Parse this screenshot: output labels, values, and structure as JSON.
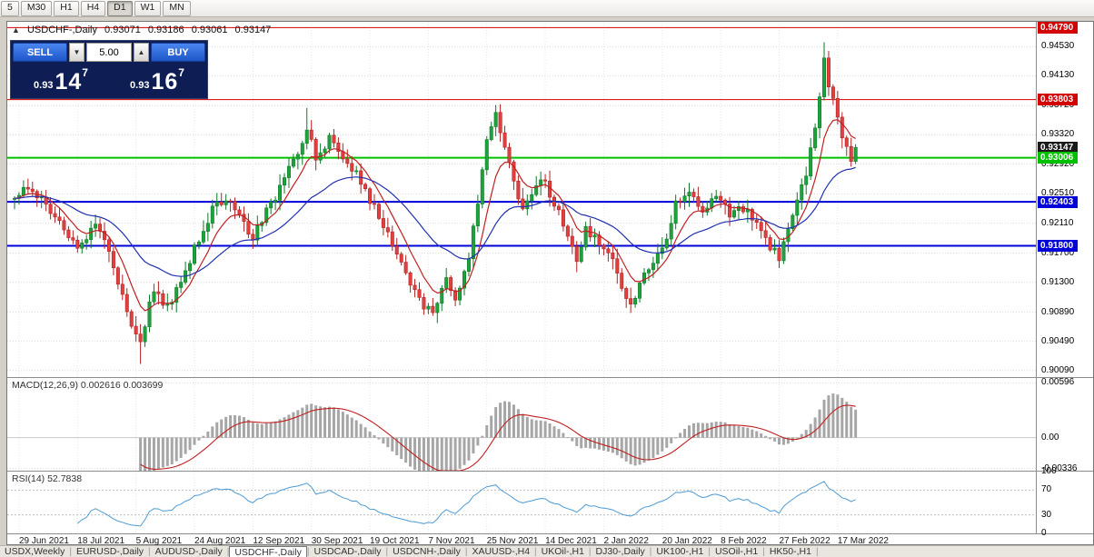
{
  "toolbar": {
    "timeframes": [
      {
        "label": "5",
        "active": false
      },
      {
        "label": "M30",
        "active": false
      },
      {
        "label": "H1",
        "active": false
      },
      {
        "label": "H4",
        "active": false
      },
      {
        "label": "D1",
        "active": true
      },
      {
        "label": "W1",
        "active": false
      },
      {
        "label": "MN",
        "active": false
      }
    ]
  },
  "chart_header": {
    "toggle_icon": "▲",
    "title": "USDCHF-,Daily",
    "open": "0.93071",
    "high": "0.93186",
    "low": "0.93061",
    "close": "0.93147"
  },
  "trade_panel": {
    "sell_label": "SELL",
    "buy_label": "BUY",
    "volume": "5.00",
    "spinner_down": "▼",
    "spinner_up": "▲",
    "sell_price": {
      "prefix": "0.93",
      "big": "14",
      "sup": "7"
    },
    "buy_price": {
      "prefix": "0.93",
      "big": "16",
      "sup": "7"
    }
  },
  "indicator_labels": {
    "macd": "MACD(12,26,9) 0.002616 0.003699",
    "rsi": "RSI(14) 52.7838"
  },
  "tabs": {
    "active_index": 3,
    "items": [
      "USDX,Weekly",
      "EURUSD-,Daily",
      "AUDUSD-,Daily",
      "USDCHF-,Daily",
      "USDCAD-,Daily",
      "USDCNH-,Daily",
      "XAUUSD-,H4",
      "UKOil-,H1",
      "DJ30-,Daily",
      "UK100-,H1",
      "USOil-,H1",
      "HK50-,H1"
    ]
  },
  "chart_data": {
    "type": "candlestick",
    "symbol": "USDCHF",
    "timeframe": "Daily",
    "visible_ohlc": {
      "open": 0.93071,
      "high": 0.93186,
      "low": 0.93061,
      "close": 0.93147
    },
    "price_range": {
      "top": 0.9487,
      "bottom": 0.9
    },
    "y_axis_ticks": [
      "0.94530",
      "0.94130",
      "0.93720",
      "0.93320",
      "0.92920",
      "0.92510",
      "0.92110",
      "0.91700",
      "0.91300",
      "0.90890",
      "0.90490",
      "0.90090"
    ],
    "x_axis_dates": [
      "29 Jun 2021",
      "18 Jul 2021",
      "5 Aug 2021",
      "24 Aug 2021",
      "12 Sep 2021",
      "30 Sep 2021",
      "19 Oct 2021",
      "7 Nov 2021",
      "25 Nov 2021",
      "14 Dec 2021",
      "2 Jan 2022",
      "20 Jan 2022",
      "8 Feb 2022",
      "27 Feb 2022",
      "17 Mar 2022"
    ],
    "date_tick_bars": [
      1,
      14,
      27,
      40,
      53,
      66,
      79,
      92,
      105,
      118,
      131,
      144,
      157,
      170,
      183
    ],
    "bars_total": 188,
    "horizontal_lines": [
      {
        "price": 0.9479,
        "label": "0.94790",
        "color": "#d20000",
        "thickness": 1
      },
      {
        "price": 0.93803,
        "label": "0.93803",
        "color": "#d20000",
        "thickness": 1
      },
      {
        "price": 0.93147,
        "label": "0.93147",
        "color": "#1a1a1a",
        "thickness": 0
      },
      {
        "price": 0.93006,
        "label": "0.93006",
        "color": "#00c000",
        "thickness": 2
      },
      {
        "price": 0.92403,
        "label": "0.92403",
        "color": "#0000d8",
        "thickness": 2
      },
      {
        "price": 0.918,
        "label": "0.91800",
        "color": "#0000d8",
        "thickness": 2
      }
    ],
    "close_waypoints": [
      [
        0,
        0.9245
      ],
      [
        4,
        0.9262
      ],
      [
        8,
        0.9225
      ],
      [
        14,
        0.918
      ],
      [
        18,
        0.9212
      ],
      [
        22,
        0.915
      ],
      [
        25,
        0.9085
      ],
      [
        28,
        0.9048
      ],
      [
        31,
        0.912
      ],
      [
        34,
        0.9098
      ],
      [
        37,
        0.913
      ],
      [
        40,
        0.9175
      ],
      [
        44,
        0.9228
      ],
      [
        48,
        0.9248
      ],
      [
        51,
        0.921
      ],
      [
        53,
        0.9195
      ],
      [
        57,
        0.9235
      ],
      [
        60,
        0.928
      ],
      [
        63,
        0.931
      ],
      [
        65,
        0.9345
      ],
      [
        67,
        0.93
      ],
      [
        70,
        0.933
      ],
      [
        73,
        0.9305
      ],
      [
        76,
        0.928
      ],
      [
        79,
        0.9245
      ],
      [
        82,
        0.9205
      ],
      [
        85,
        0.9165
      ],
      [
        88,
        0.913
      ],
      [
        91,
        0.91
      ],
      [
        93,
        0.9092
      ],
      [
        96,
        0.913
      ],
      [
        98,
        0.9108
      ],
      [
        101,
        0.916
      ],
      [
        103,
        0.924
      ],
      [
        105,
        0.933
      ],
      [
        107,
        0.9362
      ],
      [
        109,
        0.932
      ],
      [
        111,
        0.9265
      ],
      [
        113,
        0.9235
      ],
      [
        116,
        0.9258
      ],
      [
        118,
        0.9268
      ],
      [
        120,
        0.924
      ],
      [
        123,
        0.92
      ],
      [
        125,
        0.9165
      ],
      [
        127,
        0.9205
      ],
      [
        129,
        0.919
      ],
      [
        131,
        0.9178
      ],
      [
        133,
        0.916
      ],
      [
        135,
        0.9128
      ],
      [
        137,
        0.9098
      ],
      [
        139,
        0.9125
      ],
      [
        141,
        0.915
      ],
      [
        144,
        0.9172
      ],
      [
        147,
        0.9235
      ],
      [
        150,
        0.9258
      ],
      [
        153,
        0.9222
      ],
      [
        155,
        0.924
      ],
      [
        157,
        0.925
      ],
      [
        159,
        0.9215
      ],
      [
        161,
        0.9235
      ],
      [
        163,
        0.9228
      ],
      [
        165,
        0.9205
      ],
      [
        167,
        0.9188
      ],
      [
        170,
        0.916
      ],
      [
        172,
        0.92
      ],
      [
        174,
        0.9245
      ],
      [
        176,
        0.9282
      ],
      [
        178,
        0.9342
      ],
      [
        180,
        0.9438
      ],
      [
        181,
        0.9402
      ],
      [
        183,
        0.9362
      ],
      [
        184,
        0.9325
      ],
      [
        186,
        0.9298
      ],
      [
        187,
        0.93147
      ]
    ],
    "spikes": [
      {
        "bar": 28,
        "low": 0.9018
      },
      {
        "bar": 65,
        "high": 0.9369
      },
      {
        "bar": 93,
        "low": 0.9084
      },
      {
        "bar": 107,
        "high": 0.9373
      },
      {
        "bar": 137,
        "low": 0.9088
      },
      {
        "bar": 180,
        "high": 0.9459
      }
    ],
    "moving_averages": [
      {
        "type": "ema",
        "period": 8,
        "color": "#c02020"
      },
      {
        "type": "ema",
        "period": 28,
        "color": "#2030b0"
      }
    ],
    "indicators": {
      "macd": {
        "name": "MACD",
        "params": [
          12,
          26,
          9
        ],
        "current_main": 0.002616,
        "current_signal": 0.003699,
        "axis_ticks": [
          {
            "label": "0.00596",
            "value": 0.00596
          },
          {
            "label": "0.00",
            "value": 0
          },
          {
            "label": "-0.00336",
            "value": -0.00336
          }
        ],
        "range": {
          "top": 0.0065,
          "bottom": -0.0036
        },
        "histogram_color": "#a6a6a6",
        "signal_color": "#c02020"
      },
      "rsi": {
        "name": "RSI",
        "period": 14,
        "current": 52.7838,
        "axis_ticks": [
          {
            "label": "100",
            "value": 100
          },
          {
            "label": "70",
            "value": 70
          },
          {
            "label": "30",
            "value": 30
          },
          {
            "label": "0",
            "value": 0
          }
        ],
        "levels": [
          70,
          30
        ],
        "line_color": "#4d9bd5"
      }
    },
    "up_color": "#1ea33c",
    "up_border": "#0e7a28",
    "down_color": "#e04040",
    "down_border": "#b22222"
  }
}
